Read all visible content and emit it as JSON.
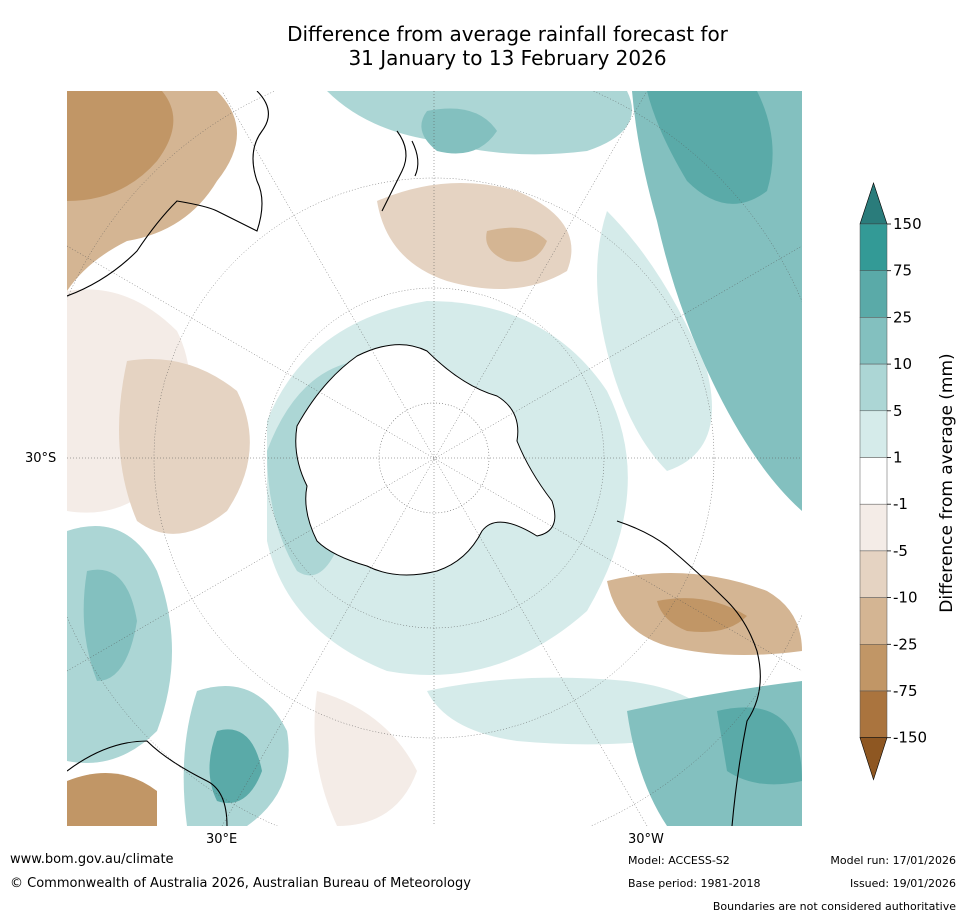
{
  "title": {
    "line1": "Difference from average rainfall forecast for",
    "line2": "31 January to 13 February 2026"
  },
  "map": {
    "lat_label": "30°S",
    "lon_label_left": "30°E",
    "lon_label_right": "30°W"
  },
  "colorbar": {
    "label": "Difference from average (mm)",
    "ticks": [
      "150",
      "75",
      "25",
      "10",
      "5",
      "1",
      "-1",
      "-5",
      "-10",
      "-25",
      "-75",
      "-150"
    ],
    "colors": {
      "over": "#2a7c7b",
      "b1": "#339a96",
      "b2": "#5aaaa8",
      "b3": "#83c0bf",
      "b4": "#acd6d5",
      "b5": "#d5ebea",
      "b6": "#ffffff",
      "b7": "#f4ece7",
      "b8": "#e5d3c2",
      "b9": "#d4b593",
      "b10": "#c19666",
      "b11": "#aa743e",
      "under": "#8e5722"
    }
  },
  "footer": {
    "website": "www.bom.gov.au/climate",
    "copyright": "© Commonwealth of Australia 2026, Australian Bureau of Meteorology",
    "model": "Model: ACCESS-S2",
    "base_period": "Base period: 1981-2018",
    "model_run": "Model run: 17/01/2026",
    "issued": "Issued: 19/01/2026",
    "disclaimer": "Boundaries are not considered authoritative"
  }
}
